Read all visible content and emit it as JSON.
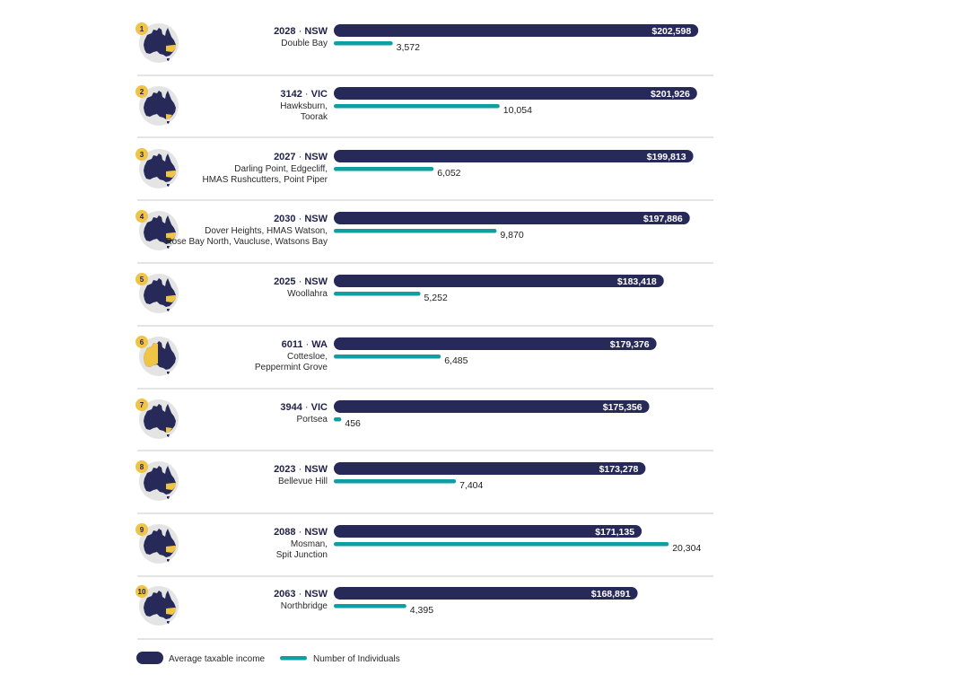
{
  "chart_data": {
    "type": "bar",
    "title": "",
    "xlabel": "",
    "ylabel": "",
    "xlim_income": [
      0,
      210000
    ],
    "xlim_individuals": [
      0,
      21000
    ],
    "series": [
      {
        "name": "Average taxable income",
        "color": "#272a58"
      },
      {
        "name": "Number of Individuals",
        "color": "#0f9ea1"
      }
    ],
    "rows": [
      {
        "rank": "1",
        "postcode": "2028",
        "state": "NSW",
        "suburb_lines": [
          "Double Bay"
        ],
        "income": 202598,
        "income_label": "$202,598",
        "individuals": 3572,
        "individuals_label": "3,572",
        "highlight": "nsw"
      },
      {
        "rank": "2",
        "postcode": "3142",
        "state": "VIC",
        "suburb_lines": [
          "Hawksburn,",
          "Toorak"
        ],
        "income": 201926,
        "income_label": "$201,926",
        "individuals": 10054,
        "individuals_label": "10,054",
        "highlight": "vic"
      },
      {
        "rank": "3",
        "postcode": "2027",
        "state": "NSW",
        "suburb_lines": [
          "Darling Point, Edgecliff,",
          "HMAS Rushcutters, Point Piper"
        ],
        "income": 199813,
        "income_label": "$199,813",
        "individuals": 6052,
        "individuals_label": "6,052",
        "highlight": "nsw"
      },
      {
        "rank": "4",
        "postcode": "2030",
        "state": "NSW",
        "suburb_lines": [
          "Dover Heights, HMAS Watson,",
          "Rose Bay North, Vaucluse, Watsons Bay"
        ],
        "income": 197886,
        "income_label": "$197,886",
        "individuals": 9870,
        "individuals_label": "9,870",
        "highlight": "nsw"
      },
      {
        "rank": "5",
        "postcode": "2025",
        "state": "NSW",
        "suburb_lines": [
          "Woollahra"
        ],
        "income": 183418,
        "income_label": "$183,418",
        "individuals": 5252,
        "individuals_label": "5,252",
        "highlight": "nsw"
      },
      {
        "rank": "6",
        "postcode": "6011",
        "state": "WA",
        "suburb_lines": [
          "Cottesloe,",
          "Peppermint Grove"
        ],
        "income": 179376,
        "income_label": "$179,376",
        "individuals": 6485,
        "individuals_label": "6,485",
        "highlight": "wa"
      },
      {
        "rank": "7",
        "postcode": "3944",
        "state": "VIC",
        "suburb_lines": [
          "Portsea"
        ],
        "income": 175356,
        "income_label": "$175,356",
        "individuals": 456,
        "individuals_label": "456",
        "highlight": "vic"
      },
      {
        "rank": "8",
        "postcode": "2023",
        "state": "NSW",
        "suburb_lines": [
          "Bellevue Hill"
        ],
        "income": 173278,
        "income_label": "$173,278",
        "individuals": 7404,
        "individuals_label": "7,404",
        "highlight": "nsw"
      },
      {
        "rank": "9",
        "postcode": "2088",
        "state": "NSW",
        "suburb_lines": [
          "Mosman,",
          "Spit Junction"
        ],
        "income": 171135,
        "income_label": "$171,135",
        "individuals": 20304,
        "individuals_label": "20,304",
        "highlight": "nsw"
      },
      {
        "rank": "10",
        "postcode": "2063",
        "state": "NSW",
        "suburb_lines": [
          "Northbridge"
        ],
        "income": 168891,
        "income_label": "$168,891",
        "individuals": 4395,
        "individuals_label": "4,395",
        "highlight": "nsw"
      }
    ],
    "legend": [
      {
        "label": "Average taxable income",
        "color": "#272a58"
      },
      {
        "label": "Number of Individuals",
        "color": "#0f9ea1"
      }
    ]
  },
  "colors": {
    "navy": "#272a58",
    "teal": "#0f9ea1",
    "gold": "#f0c445",
    "circle": "#e4e4e4",
    "divider": "#c8c8c8"
  },
  "icons": {
    "map": "australia-map-icon",
    "rank": "rank-badge-icon"
  }
}
